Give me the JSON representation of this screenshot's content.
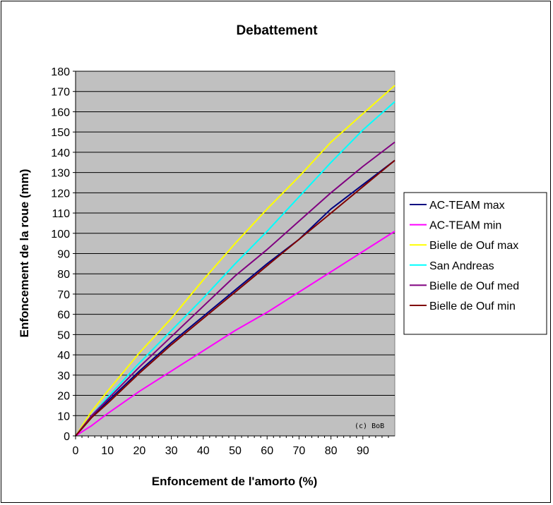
{
  "chart_data": {
    "type": "line",
    "title": "Debattement",
    "xlabel": "Enfoncement de l'amorto (%)",
    "ylabel": "Enfoncement de la roue (mm)",
    "xlim": [
      0,
      100
    ],
    "ylim": [
      0,
      180
    ],
    "x_ticks": [
      0,
      10,
      20,
      30,
      40,
      50,
      60,
      70,
      80,
      90
    ],
    "y_ticks": [
      0,
      10,
      20,
      30,
      40,
      50,
      60,
      70,
      80,
      90,
      100,
      110,
      120,
      130,
      140,
      150,
      160,
      170,
      180
    ],
    "grid": "horizontal",
    "plot_background": "#c0c0c0",
    "legend_position": "right",
    "watermark": "(c) BoB",
    "x": [
      0,
      5,
      10,
      20,
      30,
      40,
      50,
      60,
      70,
      80,
      90,
      100
    ],
    "series": [
      {
        "name": "AC-TEAM max",
        "color": "#000080",
        "values": [
          0,
          9,
          17,
          32,
          46,
          59,
          72,
          85,
          97,
          112,
          124,
          136
        ]
      },
      {
        "name": "AC-TEAM min",
        "color": "#ff00ff",
        "values": [
          0,
          5,
          11,
          22,
          32,
          42,
          52,
          61,
          71,
          81,
          91,
          101
        ]
      },
      {
        "name": "Bielle de Ouf max",
        "color": "#ffff00",
        "values": [
          0,
          12,
          22,
          41,
          58,
          77,
          95,
          112,
          128,
          145,
          159,
          173
        ]
      },
      {
        "name": "San Andreas",
        "color": "#00ffff",
        "values": [
          0,
          10,
          19,
          36,
          52,
          68,
          85,
          101,
          118,
          135,
          151,
          165
        ]
      },
      {
        "name": "Bielle de Ouf med",
        "color": "#800080",
        "values": [
          0,
          10,
          18,
          34,
          49,
          64,
          79,
          92,
          106,
          120,
          133,
          145
        ]
      },
      {
        "name": "Bielle de Ouf min",
        "color": "#800000",
        "values": [
          0,
          9,
          16,
          31,
          45,
          58,
          71,
          84,
          97,
          110,
          123,
          136
        ]
      }
    ]
  }
}
